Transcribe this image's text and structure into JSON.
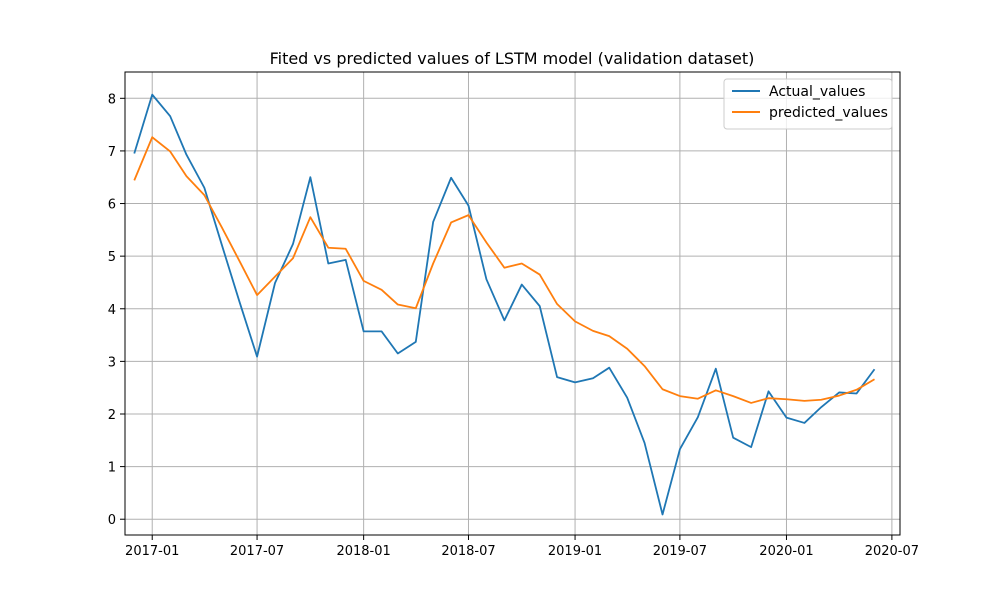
{
  "chart_data": {
    "type": "line",
    "title": "Fited vs predicted values of LSTM model (validation dataset)",
    "xlabel": "",
    "ylabel": "",
    "x_type": "date",
    "xlim": [
      "2016-11-15",
      "2020-07-15"
    ],
    "ylim": [
      -0.3,
      8.5
    ],
    "grid": true,
    "legend_position": "top-right",
    "x_ticks": [
      "2017-01",
      "2017-07",
      "2018-01",
      "2018-07",
      "2019-01",
      "2019-07",
      "2020-01",
      "2020-07"
    ],
    "y_ticks": [
      0,
      1,
      2,
      3,
      4,
      5,
      6,
      7,
      8
    ],
    "x": [
      "2016-12",
      "2017-01",
      "2017-02",
      "2017-03",
      "2017-04",
      "2017-05",
      "2017-06",
      "2017-07",
      "2017-08",
      "2017-09",
      "2017-10",
      "2017-11",
      "2017-12",
      "2018-01",
      "2018-02",
      "2018-03",
      "2018-04",
      "2018-05",
      "2018-06",
      "2018-07",
      "2018-08",
      "2018-09",
      "2018-10",
      "2018-11",
      "2018-12",
      "2019-01",
      "2019-02",
      "2019-03",
      "2019-04",
      "2019-05",
      "2019-06",
      "2019-07",
      "2019-08",
      "2019-09",
      "2019-10",
      "2019-11",
      "2019-12",
      "2020-01",
      "2020-02",
      "2020-03",
      "2020-04",
      "2020-05",
      "2020-06"
    ],
    "series": [
      {
        "name": "Actual_values",
        "color": "#1f77b4",
        "values": [
          6.95,
          8.07,
          7.66,
          6.93,
          6.3,
          5.22,
          4.12,
          3.09,
          4.49,
          5.23,
          6.5,
          4.86,
          4.93,
          3.57,
          3.57,
          3.15,
          3.37,
          5.65,
          6.49,
          5.96,
          4.56,
          3.78,
          4.46,
          4.05,
          2.7,
          2.6,
          2.68,
          2.88,
          2.31,
          1.45,
          0.09,
          1.33,
          1.94,
          2.86,
          1.55,
          1.37,
          2.43,
          1.93,
          1.83,
          2.13,
          2.41,
          2.39,
          2.85
        ]
      },
      {
        "name": "predicted_values",
        "color": "#ff7f0e",
        "values": [
          6.44,
          7.26,
          6.99,
          6.52,
          6.16,
          5.55,
          4.9,
          4.26,
          4.61,
          4.96,
          5.74,
          5.16,
          5.14,
          4.53,
          4.36,
          4.08,
          4.01,
          4.86,
          5.64,
          5.78,
          5.26,
          4.78,
          4.86,
          4.65,
          4.09,
          3.76,
          3.58,
          3.48,
          3.24,
          2.91,
          2.47,
          2.34,
          2.29,
          2.45,
          2.34,
          2.21,
          2.3,
          2.28,
          2.25,
          2.27,
          2.35,
          2.46,
          2.66
        ]
      }
    ]
  }
}
